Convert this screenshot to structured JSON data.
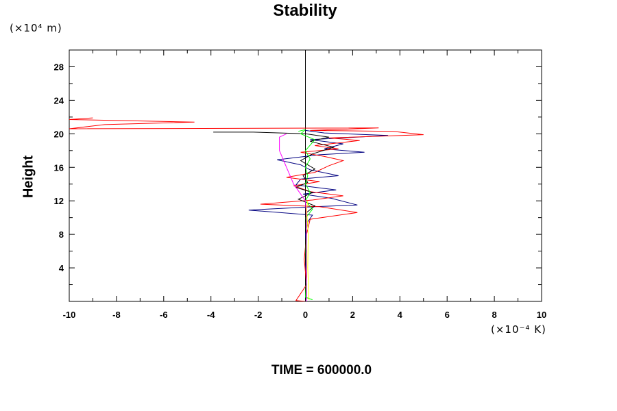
{
  "chart_data": {
    "type": "line",
    "title": "Stability",
    "ylabel": "Height",
    "y_units": "(×10⁴ m)",
    "x_units": "(×10⁻⁴ K)",
    "footer": "TIME = 600000.0",
    "xlim": [
      -10,
      10
    ],
    "ylim": [
      0,
      30
    ],
    "x_ticks": [
      -10,
      -8,
      -6,
      -4,
      -2,
      0,
      2,
      4,
      6,
      8,
      10
    ],
    "y_ticks": [
      4,
      8,
      12,
      16,
      20,
      24,
      28
    ],
    "grid": false,
    "zero_line": true,
    "series": [
      {
        "color": "#000080",
        "points": [
          [
            0,
            0
          ],
          [
            0.05,
            2
          ],
          [
            0,
            4
          ],
          [
            0.05,
            6
          ],
          [
            0,
            8
          ],
          [
            0.1,
            9.5
          ],
          [
            0.3,
            10.3
          ],
          [
            -2.4,
            10.9
          ],
          [
            0.4,
            11.3
          ],
          [
            2.2,
            11.5
          ],
          [
            1.1,
            12.3
          ],
          [
            -0.1,
            12.8
          ],
          [
            1.3,
            13.3
          ],
          [
            -0.4,
            13.9
          ],
          [
            -0.2,
            14.6
          ],
          [
            1.4,
            15
          ],
          [
            0.2,
            15.7
          ],
          [
            -0.2,
            16.3
          ],
          [
            -1.2,
            16.9
          ],
          [
            0.6,
            17.5
          ],
          [
            2.5,
            17.8
          ],
          [
            0.8,
            18.2
          ],
          [
            1.6,
            18.8
          ],
          [
            0.2,
            19.3
          ],
          [
            3.5,
            19.8
          ],
          [
            0.8,
            20.1
          ],
          [
            0,
            20.4
          ]
        ]
      },
      {
        "color": "#ff0000",
        "points": [
          [
            0,
            0
          ],
          [
            -0.4,
            0.1
          ],
          [
            0.05,
            2
          ],
          [
            -0.05,
            5
          ],
          [
            0.05,
            8
          ],
          [
            0.2,
            9.8
          ],
          [
            2.2,
            10.6
          ],
          [
            0.6,
            11.3
          ],
          [
            -1.9,
            11.6
          ],
          [
            0.3,
            12.1
          ],
          [
            1.6,
            12.6
          ],
          [
            0.2,
            13.1
          ],
          [
            -0.5,
            13.8
          ],
          [
            0.6,
            14.3
          ],
          [
            -0.8,
            14.8
          ],
          [
            0.4,
            15.4
          ],
          [
            1.0,
            16.2
          ],
          [
            1.6,
            16.8
          ],
          [
            0.8,
            17.3
          ],
          [
            -0.2,
            17.8
          ],
          [
            1.4,
            18.2
          ],
          [
            0.4,
            18.6
          ],
          [
            2.3,
            19.2
          ],
          [
            1.0,
            19.5
          ],
          [
            5.0,
            19.9
          ],
          [
            3.7,
            20.3
          ],
          [
            0.2,
            20.4
          ],
          [
            3.1,
            20.7
          ],
          [
            -10,
            20.6
          ],
          [
            -8.5,
            21.1
          ],
          [
            -4.7,
            21.4
          ],
          [
            -10,
            21.7
          ],
          [
            -9,
            21.9
          ]
        ]
      },
      {
        "color": "#000000",
        "points": [
          [
            0,
            0
          ],
          [
            0.05,
            3
          ],
          [
            0,
            6
          ],
          [
            0.05,
            9
          ],
          [
            0,
            10.5
          ],
          [
            0.4,
            11.4
          ],
          [
            -0.3,
            12.2
          ],
          [
            0.3,
            13.0
          ],
          [
            -0.4,
            13.6
          ],
          [
            0.1,
            14.2
          ],
          [
            -0.1,
            15.0
          ],
          [
            0.4,
            15.8
          ],
          [
            -0.2,
            16.8
          ],
          [
            0.3,
            17.6
          ],
          [
            1.2,
            18.4
          ],
          [
            0.2,
            19.1
          ],
          [
            1.0,
            19.6
          ],
          [
            0,
            20.0
          ],
          [
            -2.2,
            20.2
          ],
          [
            -3.9,
            20.2
          ]
        ]
      },
      {
        "color": "#00ff00",
        "points": [
          [
            0.3,
            0.2
          ],
          [
            0,
            0.5
          ],
          [
            0.05,
            3
          ],
          [
            0.02,
            6
          ],
          [
            0.05,
            9
          ],
          [
            0.02,
            10
          ],
          [
            0.3,
            11
          ],
          [
            0,
            12
          ],
          [
            0.2,
            13
          ],
          [
            0,
            14
          ],
          [
            0.1,
            15
          ],
          [
            0,
            16
          ],
          [
            0.2,
            17
          ],
          [
            0,
            18
          ],
          [
            0.4,
            19.3
          ],
          [
            -0.2,
            20
          ],
          [
            0,
            20.5
          ],
          [
            -0.3,
            20.3
          ]
        ]
      },
      {
        "color": "#ff00ff",
        "points": [
          [
            0.05,
            0
          ],
          [
            0.05,
            5
          ],
          [
            0.05,
            10
          ],
          [
            0,
            12
          ],
          [
            -0.5,
            14
          ],
          [
            -0.8,
            16
          ],
          [
            -1.1,
            18
          ],
          [
            -1.1,
            19.6
          ],
          [
            -0.8,
            20
          ]
        ]
      },
      {
        "color": "#ffff00",
        "points": [
          [
            0.15,
            0.2
          ],
          [
            0.1,
            4
          ],
          [
            0.12,
            8
          ],
          [
            0.05,
            11
          ],
          [
            0.1,
            12
          ]
        ]
      }
    ]
  }
}
